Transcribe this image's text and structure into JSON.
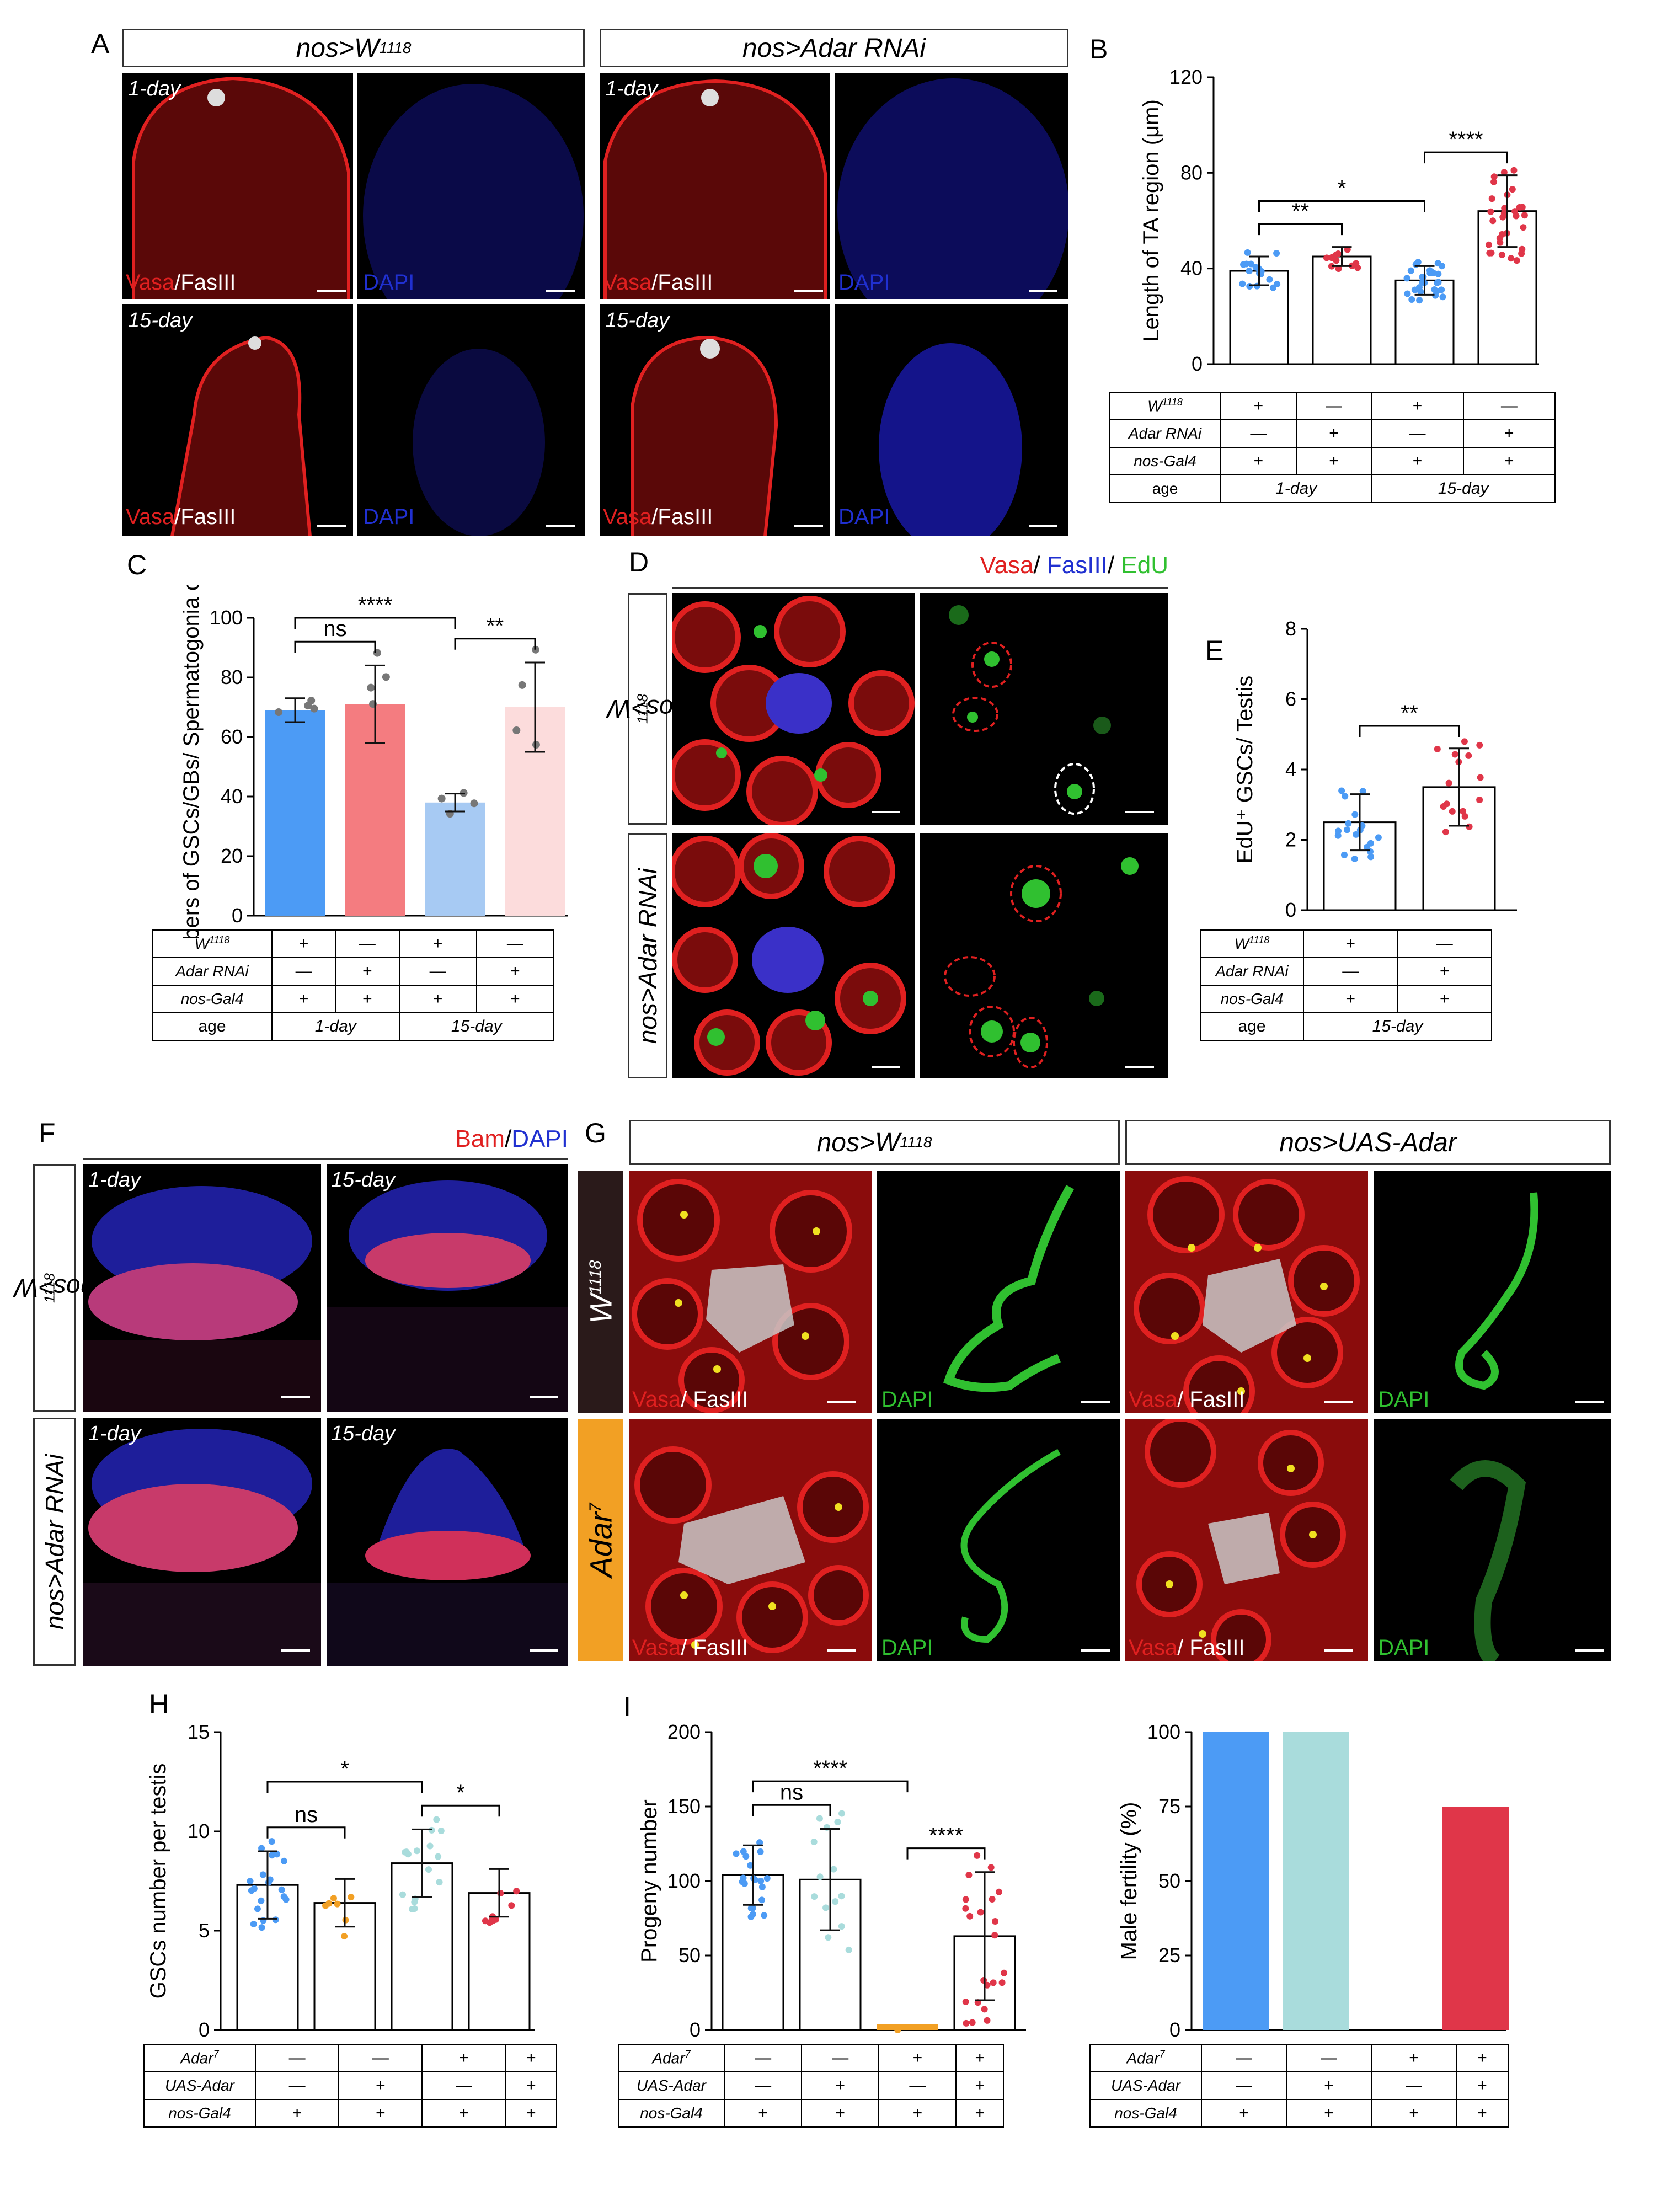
{
  "panels": {
    "A": "A",
    "B": "B",
    "C": "C",
    "D": "D",
    "E": "E",
    "F": "F",
    "G": "G",
    "H": "H",
    "I": "I"
  },
  "genotypes": {
    "w1118": "nos>W",
    "w1118_sup": "1118",
    "rnai": "nos>Adar RNAi",
    "uas": "nos>UAS-Adar",
    "w1118_short": "W",
    "adar7": "Adar",
    "adar7_sup": "7"
  },
  "ages": {
    "d1": "1-day",
    "d15": "15-day"
  },
  "stains": {
    "vasa": "Vasa",
    "fas": "/FasIII",
    "fas2": "/ FasIII",
    "dapi": "DAPI",
    "edu": "EdU",
    "bam": "Bam",
    "slash": "/",
    "fasD": "FasIII"
  },
  "rows": {
    "w": "W",
    "w_sup": "1118",
    "rnai": "Adar RNAi",
    "gal": "nos-Gal4",
    "age": "age",
    "adar": "Adar",
    "adar_sup": "7",
    "uas": "UAS-Adar"
  },
  "signs": {
    "plus": "+",
    "minus": "—"
  },
  "colors": {
    "blue": "#4c9bf5",
    "pink": "#f47c80",
    "lightblue": "#a7caf3",
    "lightpink": "#fcdcdc",
    "teal": "#a9dcdc",
    "red": "#e03649",
    "orange": "#f2a024",
    "vasa": "#e02020",
    "dapi": "#2030d0",
    "green": "#30c030"
  },
  "chart_data": [
    {
      "panel": "B",
      "type": "bar",
      "ylabel": "Length of TA region (μm)",
      "ylim": [
        0,
        120
      ],
      "yticks": [
        0,
        40,
        80,
        120
      ],
      "values": [
        39,
        45,
        35,
        64
      ],
      "errors": [
        6,
        4,
        6,
        15
      ],
      "sig": [
        "**",
        "*",
        "****"
      ]
    },
    {
      "panel": "C",
      "type": "bar",
      "ylabel": "Numbers of GSCs/GBs/ Spermatogonia cells",
      "ylim": [
        0,
        100
      ],
      "yticks": [
        0,
        20,
        40,
        60,
        80,
        100
      ],
      "values": [
        69,
        71,
        38,
        70
      ],
      "errors": [
        4,
        13,
        3,
        15
      ],
      "sig": [
        "ns",
        "****",
        "**"
      ]
    },
    {
      "panel": "E",
      "type": "bar",
      "ylabel": "EdU⁺ GSCs/ Testis",
      "ylim": [
        0,
        8
      ],
      "yticks": [
        0,
        2,
        4,
        6,
        8
      ],
      "values": [
        2.5,
        3.5
      ],
      "errors": [
        0.8,
        1.1
      ],
      "sig": [
        "**"
      ]
    },
    {
      "panel": "H",
      "type": "bar",
      "ylabel": "GSCs number per testis",
      "ylim": [
        0,
        15
      ],
      "yticks": [
        0,
        5,
        10,
        15
      ],
      "values": [
        7.3,
        6.4,
        8.4,
        6.9
      ],
      "errors": [
        1.7,
        1.2,
        1.7,
        1.2
      ],
      "sig": [
        "ns",
        "*",
        "*"
      ]
    },
    {
      "panel": "I",
      "type": "bar",
      "ylabel": "Progeny number",
      "ylim": [
        0,
        200
      ],
      "yticks": [
        0,
        50,
        100,
        150,
        200
      ],
      "values": [
        104,
        101,
        0,
        63
      ],
      "errors": [
        20,
        34,
        0,
        43
      ],
      "sig": [
        "ns",
        "****",
        "****"
      ]
    },
    {
      "panel": "I2",
      "type": "bar",
      "ylabel": "Male fertility (%)",
      "ylim": [
        0,
        100
      ],
      "yticks": [
        0,
        25,
        50,
        75,
        100
      ],
      "values": [
        100,
        100,
        0,
        75
      ],
      "sig": []
    }
  ]
}
